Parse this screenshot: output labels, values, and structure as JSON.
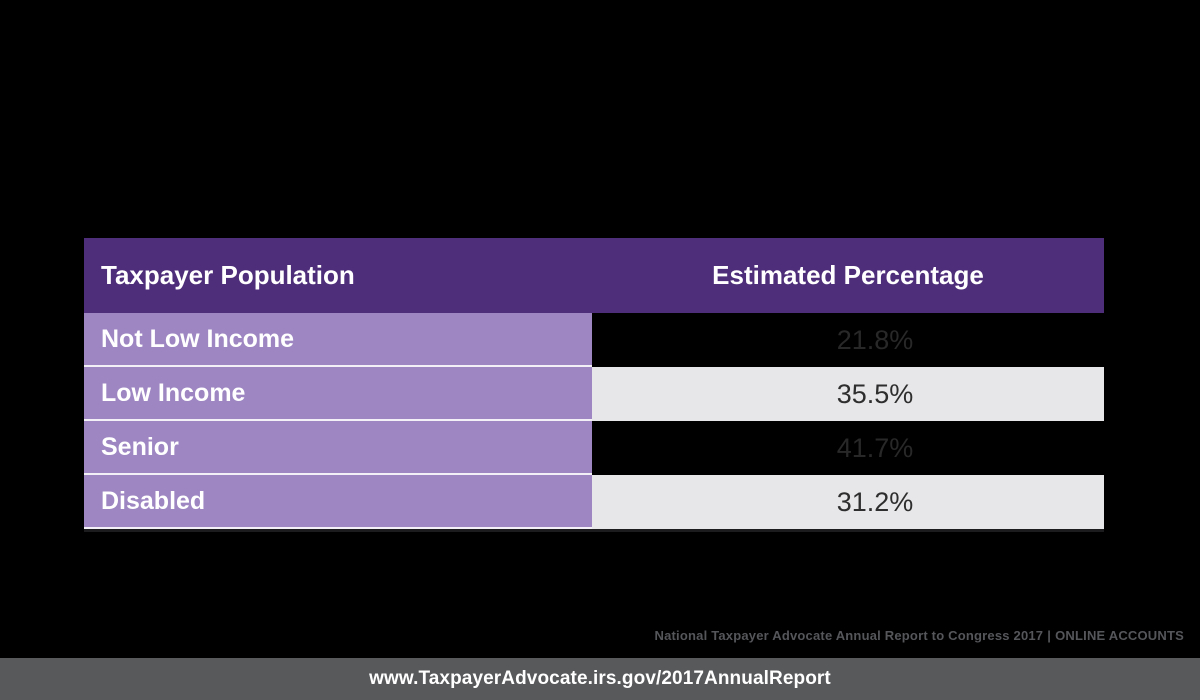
{
  "table": {
    "columns": {
      "population": "Taxpayer Population",
      "percentage": "Estimated Percentage"
    },
    "rows": [
      {
        "label": "Not Low Income",
        "value": "21.8%"
      },
      {
        "label": "Low Income",
        "value": "35.5%"
      },
      {
        "label": "Senior",
        "value": "41.7%"
      },
      {
        "label": "Disabled",
        "value": "31.2%"
      }
    ]
  },
  "chart_data": {
    "type": "table",
    "columns": [
      "Taxpayer Population",
      "Estimated Percentage"
    ],
    "categories": [
      "Not Low Income",
      "Low Income",
      "Senior",
      "Disabled"
    ],
    "values": [
      21.8,
      35.5,
      41.7,
      31.2
    ],
    "unit": "%",
    "source_note": "National Taxpayer Advocate Annual Report to Congress 2017 | ONLINE ACCOUNTS"
  },
  "attribution": {
    "report": "National Taxpayer Advocate Annual Report to Congress 2017",
    "separator": "|",
    "section": "ONLINE ACCOUNTS"
  },
  "footer": {
    "url": "www.TaxpayerAdvocate.irs.gov/2017AnnualReport"
  },
  "colors": {
    "background": "#000000",
    "header_purple": "#4e2d7a",
    "row_label_purple": "#9d86c2",
    "row_alt_gray": "#e7e7e9",
    "footer_gray": "#58595b",
    "attribution_gray": "#55565a",
    "value_text_dark": "#282828",
    "white": "#ffffff"
  }
}
